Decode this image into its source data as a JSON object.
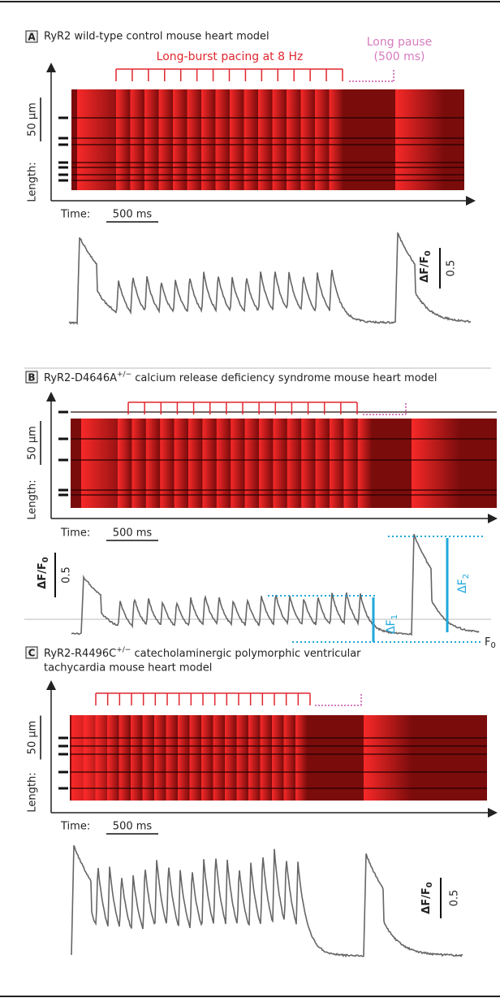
{
  "panels": [
    {
      "letter": "A",
      "title": {
        "text": "RyR2 wild-type control mouse heart model"
      },
      "pacing_label": "Long-burst pacing at 8 Hz",
      "pause_label": [
        "Long pause",
        "(500 ms)"
      ],
      "length_scale": "50 µm",
      "length_label": "Length:",
      "time_label": "Time:",
      "time_scale": "500 ms",
      "amplitude_label": {
        "main": "ΔF/F",
        "sub": "0"
      },
      "amplitude_scale": "0.5"
    },
    {
      "letter": "B",
      "title": {
        "text": "RyR2-D4646A",
        "sup": "+/−",
        "rest": " calcium release deficiency syndrome mouse heart model"
      },
      "length_scale": "50 µm",
      "length_label": "Length:",
      "time_label": "Time:",
      "time_scale": "500 ms",
      "amplitude_label": {
        "main": "ΔF/F",
        "sub": "0"
      },
      "amplitude_scale": "0.5",
      "annotations": {
        "delta_f1": {
          "main": "ΔF",
          "sub": "1"
        },
        "delta_f2": {
          "main": "ΔF",
          "sub": "2"
        },
        "f0": {
          "main": "F",
          "sub": "0"
        }
      }
    },
    {
      "letter": "C",
      "title": {
        "text": "RyR2-R4496C",
        "sup": "+/−",
        "rest": " catecholaminergic polymorphic ventricular",
        "line2": "tachycardia mouse heart model"
      },
      "length_scale": "50 µm",
      "length_label": "Length:",
      "time_label": "Time:",
      "time_scale": "500 ms",
      "amplitude_label": {
        "main": "ΔF/F",
        "sub": "0"
      },
      "amplitude_scale": "0.5"
    }
  ]
}
